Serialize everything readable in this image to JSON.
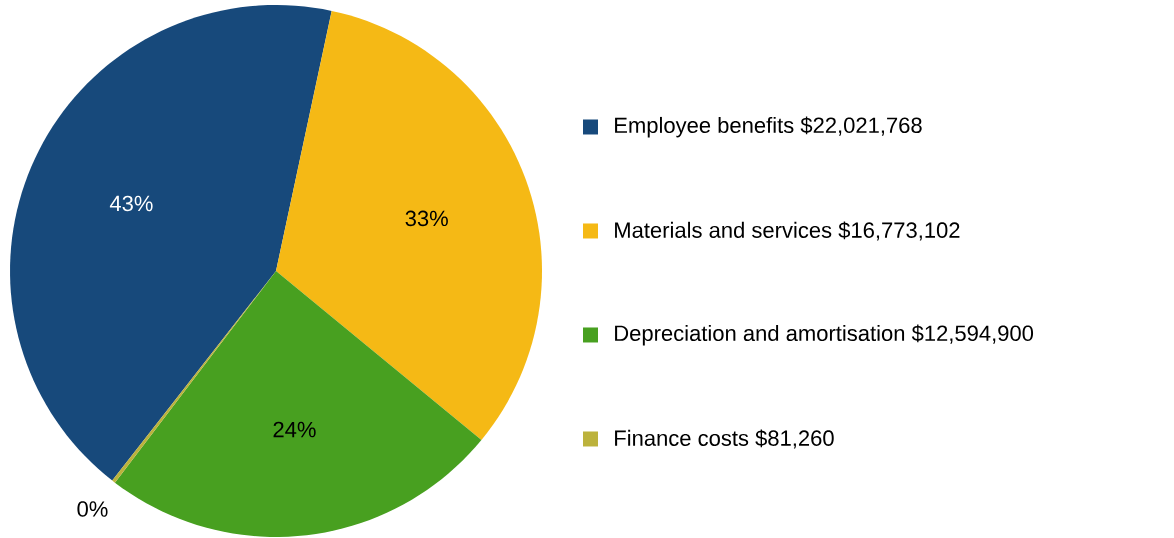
{
  "chart_data": {
    "type": "pie",
    "categories": [
      "Employee benefits  $22,021,768",
      "Materials and services   $16,773,102",
      "Depreciation and amortisation  $12,594,900",
      "Finance costs  $81,260"
    ],
    "values": [
      42.8,
      32.6,
      24.4,
      0.2
    ],
    "colors": [
      "#17497b",
      "#f5b915",
      "#48a020",
      "#bcb23c"
    ],
    "value_labels": [
      "43%",
      "33%",
      "24%",
      "0%"
    ],
    "legend": "right"
  }
}
